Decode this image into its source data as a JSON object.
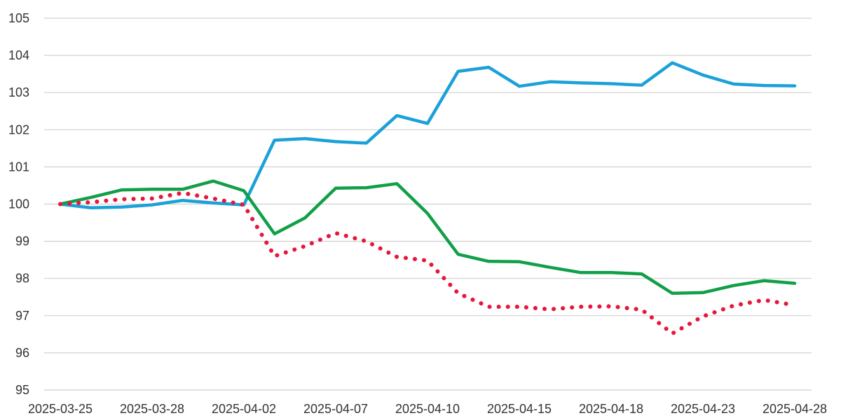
{
  "chart_data": {
    "type": "line",
    "title": "",
    "xlabel": "",
    "ylabel": "",
    "ylim": [
      95,
      105
    ],
    "yticks": [
      95,
      96,
      97,
      98,
      99,
      100,
      101,
      102,
      103,
      104,
      105
    ],
    "grid": true,
    "legend": "none",
    "x": [
      "2025-03-25",
      "2025-03-26",
      "2025-03-27",
      "2025-03-28",
      "2025-03-31",
      "2025-04-01",
      "2025-04-02",
      "2025-04-03",
      "2025-04-04",
      "2025-04-07",
      "2025-04-08",
      "2025-04-09",
      "2025-04-10",
      "2025-04-11",
      "2025-04-14",
      "2025-04-15",
      "2025-04-16",
      "2025-04-17",
      "2025-04-18",
      "2025-04-21",
      "2025-04-22",
      "2025-04-23",
      "2025-04-24",
      "2025-04-25",
      "2025-04-28"
    ],
    "xtick_labels": [
      "2025-03-25",
      "2025-03-28",
      "2025-04-02",
      "2025-04-07",
      "2025-04-10",
      "2025-04-15",
      "2025-04-18",
      "2025-04-23",
      "2025-04-28"
    ],
    "series": [
      {
        "color": "#1ba1d8",
        "style": "solid",
        "values": [
          100.0,
          99.9,
          99.92,
          99.98,
          100.1,
          100.03,
          99.98,
          101.72,
          101.76,
          101.68,
          101.64,
          102.38,
          102.17,
          103.57,
          103.68,
          103.17,
          103.29,
          103.26,
          103.24,
          103.2,
          103.8,
          103.47,
          103.23,
          103.19,
          103.18
        ]
      },
      {
        "color": "#119f48",
        "style": "solid",
        "values": [
          100.0,
          100.18,
          100.38,
          100.4,
          100.4,
          100.62,
          100.36,
          99.2,
          99.63,
          100.43,
          100.44,
          100.55,
          99.75,
          98.65,
          98.46,
          98.45,
          98.3,
          98.16,
          98.16,
          98.12,
          97.6,
          97.62,
          97.81,
          97.94,
          97.87
        ]
      },
      {
        "color": "#e8163c",
        "style": "dotted",
        "values": [
          100.0,
          100.05,
          100.13,
          100.15,
          100.3,
          100.15,
          99.98,
          98.6,
          98.87,
          99.22,
          99.0,
          98.58,
          98.48,
          97.6,
          97.24,
          97.24,
          97.17,
          97.24,
          97.25,
          97.16,
          96.52,
          96.98,
          97.27,
          97.42,
          97.28
        ]
      }
    ]
  }
}
